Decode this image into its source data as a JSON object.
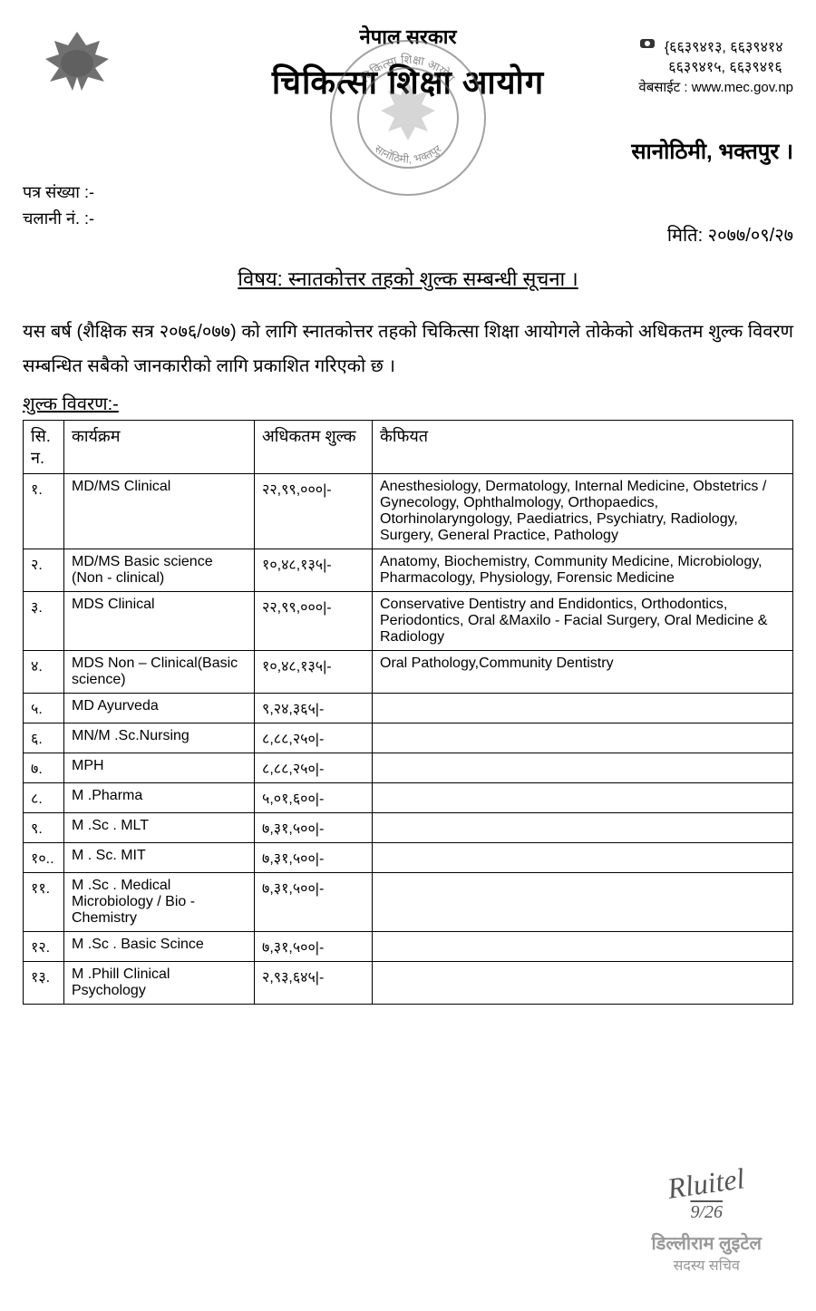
{
  "header": {
    "govt": "नेपाल सरकार",
    "org": "चिकित्सा शिक्षा आयोग",
    "phones_line1": "६६३९४१३, ६६३९४१४",
    "phones_line2": "६६३९४१५, ६६३९४१६",
    "website": "वेबसाईट : www.mec.gov.np",
    "location": "सानोठिमी, भक्तपुर ।",
    "seal_line1": "नेपाल सरकार",
    "seal_line2": "चिकित्सा शिक्षा आयोग",
    "seal_line3": "सानोठिमी, भक्तपुर",
    "ref_no_label": "पत्र संख्या :-",
    "chalani_label": "चलानी नं. :-"
  },
  "date": "मिति: २०७७/०९/२७",
  "subject": "विषय: स्नातकोत्तर तहको शुल्क सम्बन्धी सूचना ।",
  "body": "यस बर्ष (शैक्षिक सत्र २०७६/०७७) को लागि स्नातकोत्तर तहको चिकित्सा शिक्षा आयोगले तोकेको अधिकतम शुल्क विवरण सम्बन्धित सबैको जानकारीको लागि प्रकाशित गरिएको छ ।",
  "fee_label": "शुल्क विवरण:-",
  "table": {
    "headers": {
      "sn": "सि. न.",
      "program": "कार्यक्रम",
      "fee": "अधिकतम शुल्क",
      "remarks": "कैफियत"
    },
    "rows": [
      {
        "sn": "१.",
        "program": "MD/MS Clinical",
        "fee": "२२,९९,०००|-",
        "remarks": "Anesthesiology, Dermatology, Internal Medicine, Obstetrics / Gynecology, Ophthalmology, Orthopaedics, Otorhinolaryngology, Paediatrics, Psychiatry, Radiology, Surgery, General Practice, Pathology"
      },
      {
        "sn": "२.",
        "program": "MD/MS Basic science (Non - clinical)",
        "fee": "१०,४८,१३५|-",
        "remarks": "Anatomy, Biochemistry, Community Medicine, Microbiology, Pharmacology, Physiology, Forensic Medicine"
      },
      {
        "sn": "३.",
        "program": "MDS Clinical",
        "fee": "२२,९९,०००|-",
        "remarks": "Conservative Dentistry and Endidontics, Orthodontics, Periodontics, Oral &Maxilo - Facial Surgery, Oral Medicine & Radiology"
      },
      {
        "sn": "४.",
        "program": "MDS Non – Clinical(Basic science)",
        "fee": "१०,४८,१३५|-",
        "remarks": "Oral Pathology,Community Dentistry"
      },
      {
        "sn": "५.",
        "program": "MD Ayurveda",
        "fee": "९,२४,३६५|-",
        "remarks": ""
      },
      {
        "sn": "६.",
        "program": "MN/M .Sc.Nursing",
        "fee": "८,८८,२५०|-",
        "remarks": ""
      },
      {
        "sn": "७.",
        "program": "MPH",
        "fee": "८,८८,२५०|-",
        "remarks": ""
      },
      {
        "sn": "८.",
        "program": "M .Pharma",
        "fee": "५,०१,६००|-",
        "remarks": ""
      },
      {
        "sn": "९.",
        "program": "M .Sc . MLT",
        "fee": "७,३१,५००|-",
        "remarks": ""
      },
      {
        "sn": "१०..",
        "program": "M . Sc. MIT",
        "fee": "७,३१,५००|-",
        "remarks": ""
      },
      {
        "sn": "११.",
        "program": "M .Sc . Medical Microbiology / Bio - Chemistry",
        "fee": "७,३१,५००|-",
        "remarks": ""
      },
      {
        "sn": "१२.",
        "program": "M .Sc . Basic Scince",
        "fee": "७,३१,५००|-",
        "remarks": ""
      },
      {
        "sn": "१३.",
        "program": "M .Phill Clinical Psychology",
        "fee": "२,९३,६४५|-",
        "remarks": ""
      }
    ]
  },
  "signature": {
    "mark": "Rluitel",
    "sig_date": "9/26",
    "name": "डिल्लीराम लुइटेल",
    "title": "सदस्य सचिव"
  }
}
